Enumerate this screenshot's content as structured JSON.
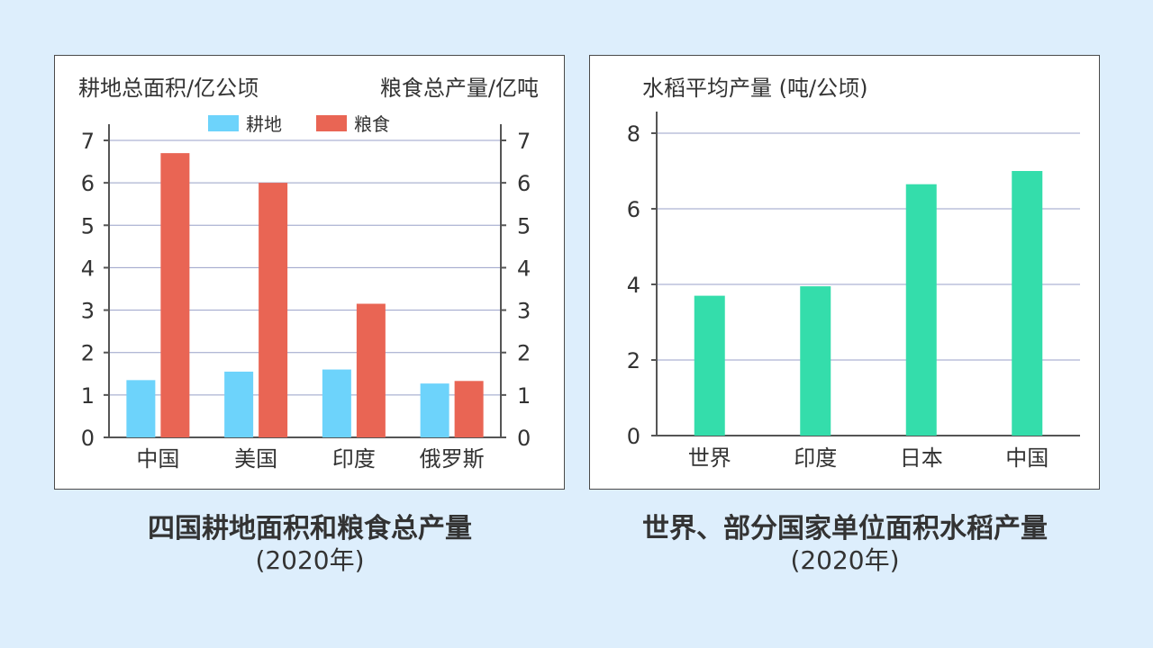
{
  "left_chart": {
    "left_axis_label": "耕地总面积/亿公顷",
    "right_axis_label": "粮食总产量/亿吨",
    "legend": [
      {
        "name": "耕地",
        "color": "#6dd3fb"
      },
      {
        "name": "粮食",
        "color": "#e96554"
      }
    ],
    "caption_title": "四国耕地面积和粮食总产量",
    "caption_sub": "(2020年)"
  },
  "right_chart": {
    "axis_label": "水稻平均产量 (吨/公顷)",
    "bar_color": "#34ddab",
    "caption_title": "世界、部分国家单位面积水稻产量",
    "caption_sub": "(2020年)"
  },
  "chart_data": [
    {
      "type": "bar",
      "categories": [
        "中国",
        "美国",
        "印度",
        "俄罗斯"
      ],
      "series": [
        {
          "name": "耕地",
          "values": [
            1.35,
            1.55,
            1.6,
            1.27
          ]
        },
        {
          "name": "粮食",
          "values": [
            6.7,
            6.0,
            3.15,
            1.33
          ]
        }
      ],
      "ylim": [
        0,
        7
      ],
      "yticks": [
        0,
        1,
        2,
        3,
        4,
        5,
        6,
        7
      ],
      "ylabel_left": "耕地总面积/亿公顷",
      "ylabel_right": "粮食总产量/亿吨",
      "grid": true,
      "legend_position": "top"
    },
    {
      "type": "bar",
      "categories": [
        "世界",
        "印度",
        "日本",
        "中国"
      ],
      "values": [
        3.7,
        3.95,
        6.65,
        7.0
      ],
      "ylim": [
        0,
        8
      ],
      "yticks": [
        0,
        2,
        4,
        6,
        8
      ],
      "ylabel": "水稻平均产量 (吨/公顷)",
      "grid": true
    }
  ]
}
